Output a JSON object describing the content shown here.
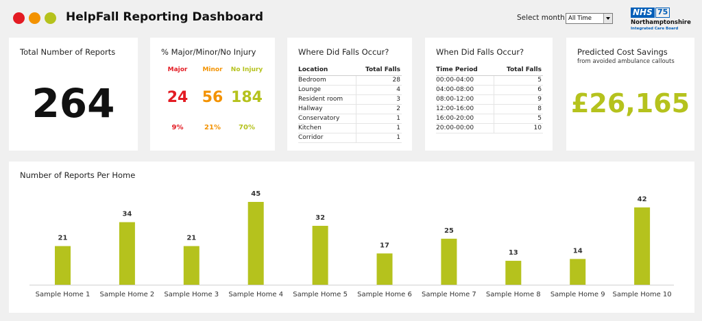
{
  "header": {
    "title": "HelpFall Reporting Dashboard",
    "month_label": "Select month:",
    "month_value": "All Time",
    "logo": {
      "nhs": "NHS",
      "number": "75",
      "org": "Northamptonshire",
      "sub": "Integrated Care Board"
    }
  },
  "colors": {
    "major": "#e31b23",
    "minor": "#f39200",
    "no_injury": "#b5c21d",
    "bar": "#b5c21d"
  },
  "total": {
    "title": "Total Number of Reports",
    "value": "264"
  },
  "injury": {
    "title": "% Major/Minor/No Injury",
    "major": {
      "label": "Major",
      "count": "24",
      "pct": "9%"
    },
    "minor": {
      "label": "Minor",
      "count": "56",
      "pct": "21%"
    },
    "none": {
      "label": "No Injury",
      "count": "184",
      "pct": "70%"
    }
  },
  "where": {
    "title": "Where Did Falls Occur?",
    "headers": [
      "Location",
      "Total Falls"
    ],
    "rows": [
      [
        "Bedroom",
        "28"
      ],
      [
        "Lounge",
        "4"
      ],
      [
        "Resident room",
        "3"
      ],
      [
        "Hallway",
        "2"
      ],
      [
        "Conservatory",
        "1"
      ],
      [
        "Kitchen",
        "1"
      ],
      [
        "Corridor",
        "1"
      ]
    ]
  },
  "when": {
    "title": "When Did Falls Occur?",
    "headers": [
      "Time Period",
      "Total Falls"
    ],
    "rows": [
      [
        "00:00-04:00",
        "5"
      ],
      [
        "04:00-08:00",
        "6"
      ],
      [
        "08:00-12:00",
        "9"
      ],
      [
        "12:00-16:00",
        "8"
      ],
      [
        "16:00-20:00",
        "5"
      ],
      [
        "20:00-00:00",
        "10"
      ]
    ]
  },
  "savings": {
    "title": "Predicted Cost Savings",
    "subtitle": "from avoided ambulance callouts",
    "value": "£26,165"
  },
  "chart_data": {
    "type": "bar",
    "title": "Number of Reports Per Home",
    "categories": [
      "Sample Home 1",
      "Sample Home 2",
      "Sample Home 3",
      "Sample Home 4",
      "Sample Home 5",
      "Sample Home 6",
      "Sample Home 7",
      "Sample Home 8",
      "Sample Home 9",
      "Sample Home 10"
    ],
    "values": [
      21,
      34,
      21,
      45,
      32,
      17,
      25,
      13,
      14,
      42
    ],
    "ylim": [
      0,
      45
    ],
    "grid": false,
    "data_labels": true
  }
}
